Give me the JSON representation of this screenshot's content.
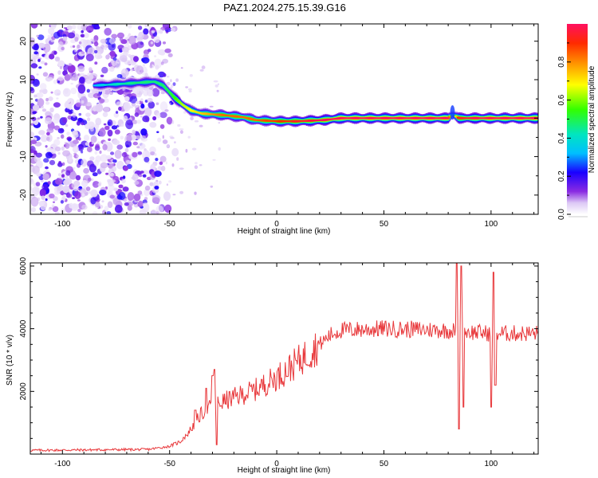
{
  "title": "PAZ1.2024.275.15.39.G16",
  "chart_data": [
    {
      "type": "heatmap",
      "xlabel": "Height of straight line (km)",
      "ylabel": "Frequency (Hz)",
      "xlim": [
        -115,
        122
      ],
      "ylim": [
        -25,
        24.5
      ],
      "xticks": [
        -100,
        -50,
        0,
        50,
        100
      ],
      "yticks": [
        -20,
        -10,
        0,
        10,
        20
      ],
      "colorbar": {
        "label": "Normalized spectral amplitude",
        "range": [
          0,
          1
        ],
        "ticks": [
          "0.0",
          "0.2",
          "0.4",
          "0.6",
          "0.8"
        ],
        "colormap": "rainbow (white-violet-blue-cyan-green-yellow-orange-red-pink)"
      },
      "ridge": {
        "description": "dominant Doppler frequency track",
        "x": [
          -85,
          -75,
          -65,
          -57,
          -53,
          -48,
          -44,
          -40,
          -35,
          -25,
          -15,
          -10,
          0,
          10,
          22,
          30,
          50,
          80,
          82,
          85,
          100,
          122
        ],
        "y": [
          8.5,
          8.8,
          9.2,
          9.5,
          8.5,
          5.5,
          3.5,
          2,
          1.2,
          0.8,
          0.2,
          -0.5,
          -0.8,
          -0.8,
          -0.5,
          0,
          0,
          0,
          1,
          0,
          0,
          0
        ],
        "amplitude": [
          0.3,
          0.4,
          0.45,
          0.45,
          0.45,
          0.5,
          0.6,
          0.65,
          0.7,
          0.8,
          0.8,
          0.8,
          0.85,
          0.9,
          0.95,
          1.0,
          1.0,
          1.0,
          0.3,
          0.9,
          1.0,
          1.0
        ]
      },
      "noise_region_x": [
        -115,
        -52
      ]
    },
    {
      "type": "line",
      "xlabel": "Height of straight line (km)",
      "ylabel": "SNR (10 * v/v)",
      "xlim": [
        -115,
        122
      ],
      "ylim": [
        0,
        6100
      ],
      "xticks": [
        -100,
        -50,
        0,
        50,
        100
      ],
      "yticks": [
        2000,
        4000,
        6000
      ],
      "series": [
        {
          "color": "#e8383b",
          "trend_x": [
            -115,
            -60,
            -50,
            -45,
            -40,
            -35,
            -30,
            -20,
            -10,
            0,
            10,
            20,
            25,
            30,
            50,
            80,
            100,
            122
          ],
          "trend_y": [
            120,
            150,
            250,
            400,
            800,
            1300,
            1550,
            1800,
            2050,
            2450,
            2950,
            3500,
            3800,
            3950,
            4000,
            3950,
            3850,
            3850
          ],
          "spikes": [
            {
              "x": -42,
              "y": 600
            },
            {
              "x": -38,
              "y": 1400
            },
            {
              "x": -33,
              "y": 2100
            },
            {
              "x": -30,
              "y": 2500
            },
            {
              "x": -29,
              "y": 2700
            },
            {
              "x": -28,
              "y": 300
            },
            {
              "x": 84,
              "y": 6100
            },
            {
              "x": 85,
              "y": 800
            },
            {
              "x": 86,
              "y": 6000
            },
            {
              "x": 87,
              "y": 1500
            },
            {
              "x": 100,
              "y": 1500
            },
            {
              "x": 101,
              "y": 5800
            },
            {
              "x": 102,
              "y": 2200
            }
          ]
        }
      ]
    }
  ]
}
